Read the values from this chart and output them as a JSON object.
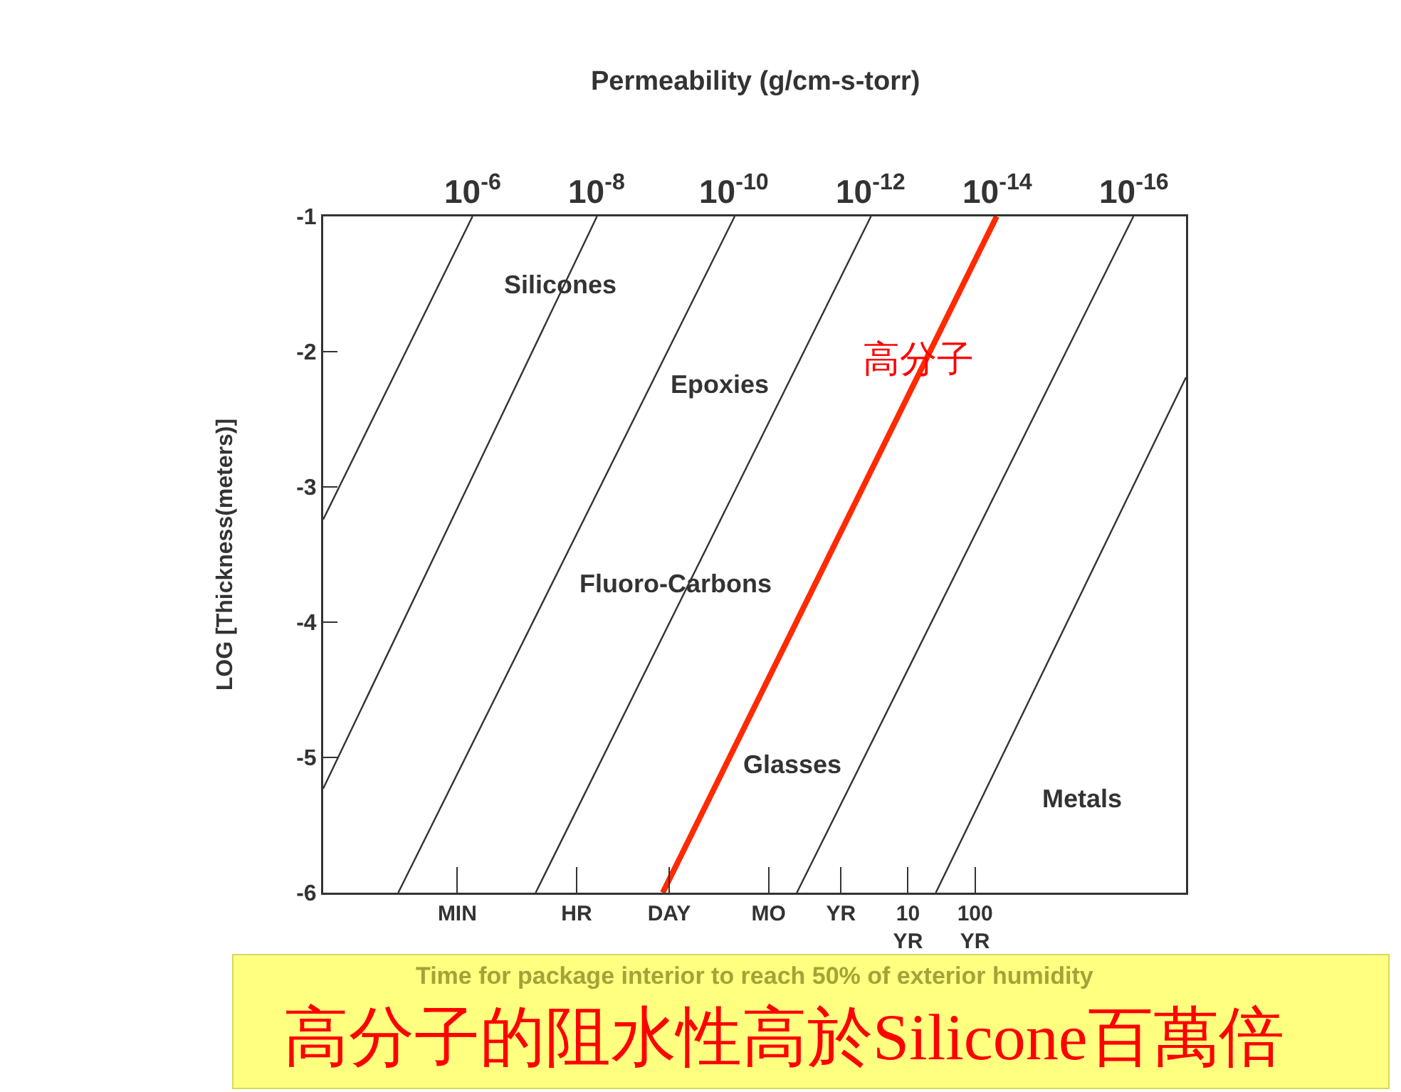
{
  "chart_data": {
    "type": "line",
    "xlabel": "Time for package interior to reach 50% of exterior humidity",
    "ylabel": "LOG [Thickness(meters)]",
    "annotations": [
      "Silicones",
      "Epoxies",
      "Fluoro-Carbons",
      "Glasses",
      "Metals",
      "高分子",
      "高分子的阻水性高於Silicone百萬倍",
      "Permeability (g/cm-s-torr)",
      {
        "text": "10$^{-6}$",
        "x": 3.2e-06,
        "y": -1
      },
      {
        "text": "10$^{-8}$",
        "x": 0.00023,
        "y": -1
      },
      {
        "text": "10$^{-10}$",
        "x": 0.026,
        "y": -1
      },
      {
        "text": "10$^{-12}$",
        "x": 2.8,
        "y": -1
      },
      {
        "text": "10$^{-14}$",
        "x": 210,
        "y": -1
      },
      {
        "text": "10$^{-16}$",
        "x": 23000.0,
        "y": -1
      }
    ],
    "log": "x",
    "xlim": [
      1.9e-08,
      140000.0
    ],
    "xticks": [
      {
        "value": 1.9e-06,
        "label": "MIN"
      },
      {
        "value": 0.000114,
        "label": "HR"
      },
      {
        "value": 0.00274,
        "label": "DAY"
      },
      {
        "value": 0.0833,
        "label": "MO"
      },
      {
        "value": 1,
        "label": "YR"
      },
      {
        "value": 10,
        "label": "10\nYR"
      },
      {
        "value": 100,
        "label": "100\nYR"
      }
    ],
    "ylim": [
      -6,
      -1
    ],
    "yticks": [
      -1,
      -2,
      -3,
      -4,
      -5,
      -6
    ],
    "series": [
      {
        "color": "#333333",
        "x": [
          3.2e-06,
          1.9e-08
        ],
        "values": [
          -1,
          -3.24
        ]
      },
      {
        "color": "#333333",
        "x": [
          0.00023,
          1.9e-08
        ],
        "values": [
          -1,
          -5.23
        ]
      },
      {
        "color": "#333333",
        "x": [
          0.026,
          2.5e-07
        ],
        "values": [
          -1,
          -6
        ]
      },
      {
        "color": "#333333",
        "x": [
          2.8,
          2.8e-05
        ],
        "values": [
          -1,
          -6
        ]
      },
      {
        "color": "#ff2a00",
        "x": [
          210,
          0.0022
        ],
        "values": [
          -1,
          -6
        ]
      },
      {
        "color": "#333333",
        "x": [
          23000.0,
          0.22
        ],
        "values": [
          -1,
          -6
        ]
      },
      {
        "color": "#333333",
        "x": [
          140000.0,
          26
        ],
        "values": [
          -2.19,
          -6
        ]
      }
    ]
  }
}
